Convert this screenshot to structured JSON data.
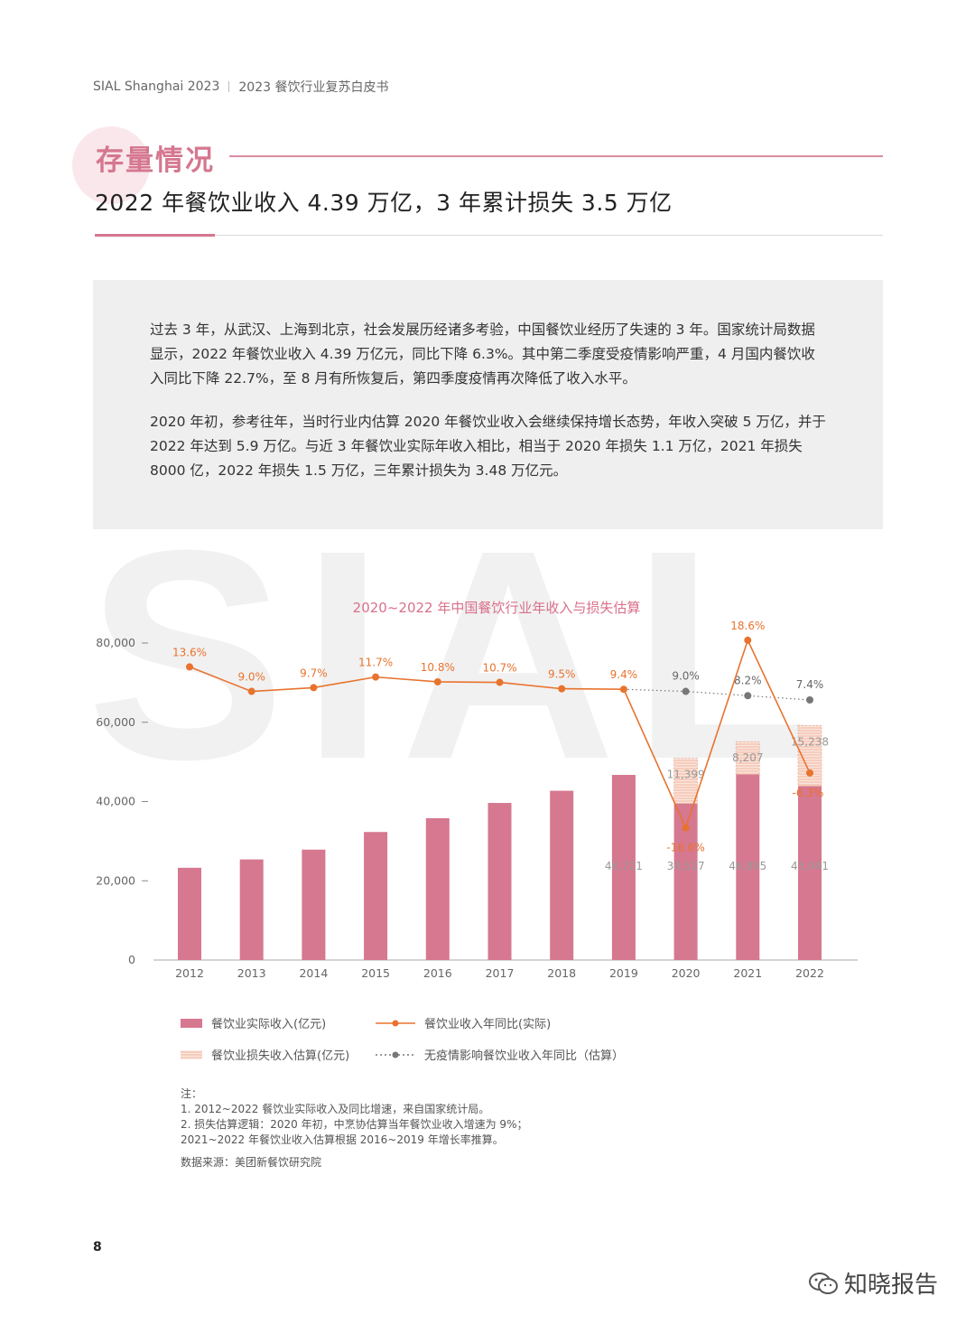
{
  "header": {
    "left": "SIAL Shanghai 2023",
    "right": "2023 餐饮行业复苏白皮书"
  },
  "section": {
    "title": "存量情况"
  },
  "headline": "2022 年餐饮业收入 4.39 万亿，3 年累计损失 3.5 万亿",
  "paragraphs": [
    "过去 3 年，从武汉、上海到北京，社会发展历经诸多考验，中国餐饮业经历了失速的 3 年。国家统计局数据显示，2022 年餐饮业收入 4.39 万亿元，同比下降 6.3%。其中第二季度受疫情影响严重，4 月国内餐饮收入同比下降 22.7%，至 8 月有所恢复后，第四季度疫情再次降低了收入水平。",
    "2020 年初，参考往年，当时行业内估算 2020 年餐饮业收入会继续保持增长态势，年收入突破 5 万亿，并于 2022 年达到 5.9 万亿。与近 3 年餐饮业实际年收入相比，相当于 2020 年损失 1.1 万亿，2021 年损失 8000 亿，2022 年损失 1.5 万亿，三年累计损失为 3.48 万亿元。"
  ],
  "watermark": "SIAL",
  "chart_data": {
    "type": "bar",
    "title": "2020~2022 年中国餐饮行业年收入与损失估算",
    "categories": [
      "2012",
      "2013",
      "2014",
      "2015",
      "2016",
      "2017",
      "2018",
      "2019",
      "2020",
      "2021",
      "2022"
    ],
    "y_ticks": [
      "0",
      "20,000",
      "40,000",
      "60,000",
      "80,000"
    ],
    "ylim": [
      0,
      80000
    ],
    "series": [
      {
        "name": "餐饮业实际收入(亿元)",
        "kind": "bar",
        "values": [
          23283,
          25392,
          27860,
          32310,
          35799,
          39644,
          42716,
          46721,
          39527,
          46895,
          43941
        ],
        "labels": [
          "",
          "",
          "",
          "",
          "",
          "",
          "",
          "46,721",
          "39,527",
          "46,895",
          "43,941"
        ]
      },
      {
        "name": "餐饮业损失收入估算(亿元)",
        "kind": "stacked-bar",
        "values": [
          null,
          null,
          null,
          null,
          null,
          null,
          null,
          null,
          11399,
          8207,
          15238
        ],
        "labels": [
          "",
          "",
          "",
          "",
          "",
          "",
          "",
          "",
          "11,399",
          "8,207",
          "15,238"
        ]
      },
      {
        "name": "餐饮业收入年同比(实际)",
        "kind": "line",
        "unit": "%",
        "values": [
          13.6,
          9.0,
          9.7,
          11.7,
          10.8,
          10.7,
          9.5,
          9.4,
          -16.6,
          18.6,
          -6.3
        ],
        "labels": [
          "13.6%",
          "9.0%",
          "9.7%",
          "11.7%",
          "10.8%",
          "10.7%",
          "9.5%",
          "9.4%",
          "-16.6%",
          "18.6%",
          "-6.3%"
        ]
      },
      {
        "name": "无疫情影响餐饮业收入年同比（估算）",
        "kind": "dotted-line",
        "unit": "%",
        "values": [
          null,
          null,
          null,
          null,
          null,
          null,
          null,
          9.4,
          9.0,
          8.2,
          7.4
        ],
        "labels": [
          "",
          "",
          "",
          "",
          "",
          "",
          "",
          "",
          "9.0%",
          "8.2%",
          "7.4%"
        ]
      }
    ],
    "colors": {
      "bar": "#d6788f",
      "loss": "#f6cdbd",
      "line": "#e8732e",
      "dotted": "#777777",
      "title": "#d9708b"
    }
  },
  "notes": [
    "注：",
    "1. 2012~2022 餐饮业实际收入及同比增速，来自国家统计局。",
    "2. 损失估算逻辑：2020 年初，中烹协估算当年餐饮业收入增速为 9%；",
    "2021~2022 年餐饮业收入估算根据 2016~2019 年增长率推算。"
  ],
  "source": "数据来源：美团新餐饮研究院",
  "page_number": "8",
  "brand": "知晓报告"
}
